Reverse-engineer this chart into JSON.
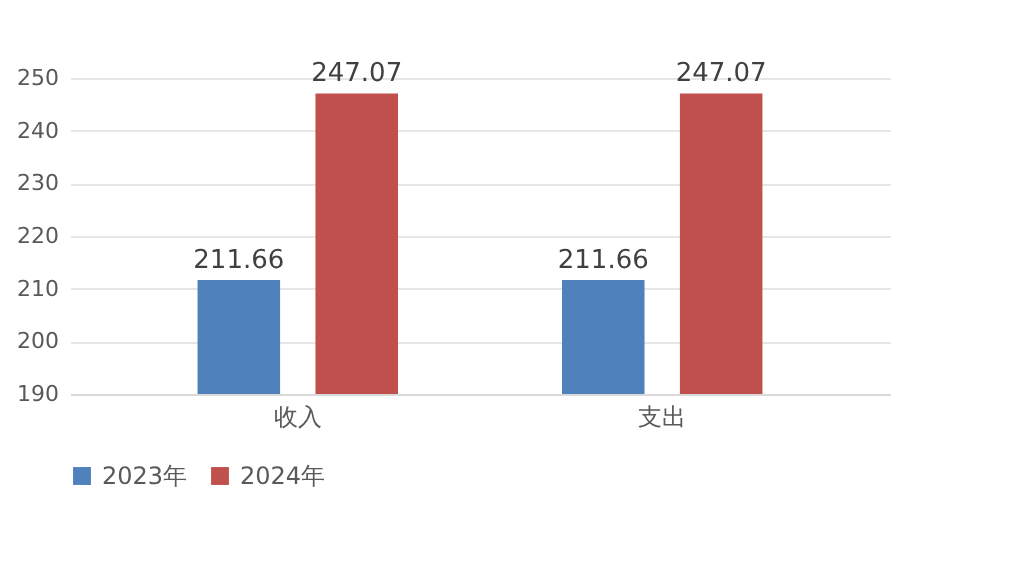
{
  "chart_data": {
    "type": "bar",
    "categories": [
      "收入",
      "支出"
    ],
    "series": [
      {
        "name": "2023年",
        "color": "#4f81bd",
        "values": [
          211.66,
          211.66
        ]
      },
      {
        "name": "2024年",
        "color": "#c0504d",
        "values": [
          247.07,
          247.07
        ]
      }
    ],
    "ylim": [
      190,
      250
    ],
    "yticks": [
      190,
      200,
      210,
      220,
      230,
      240,
      250
    ],
    "grid": "y",
    "legend": "bottom",
    "data_labels": true
  }
}
